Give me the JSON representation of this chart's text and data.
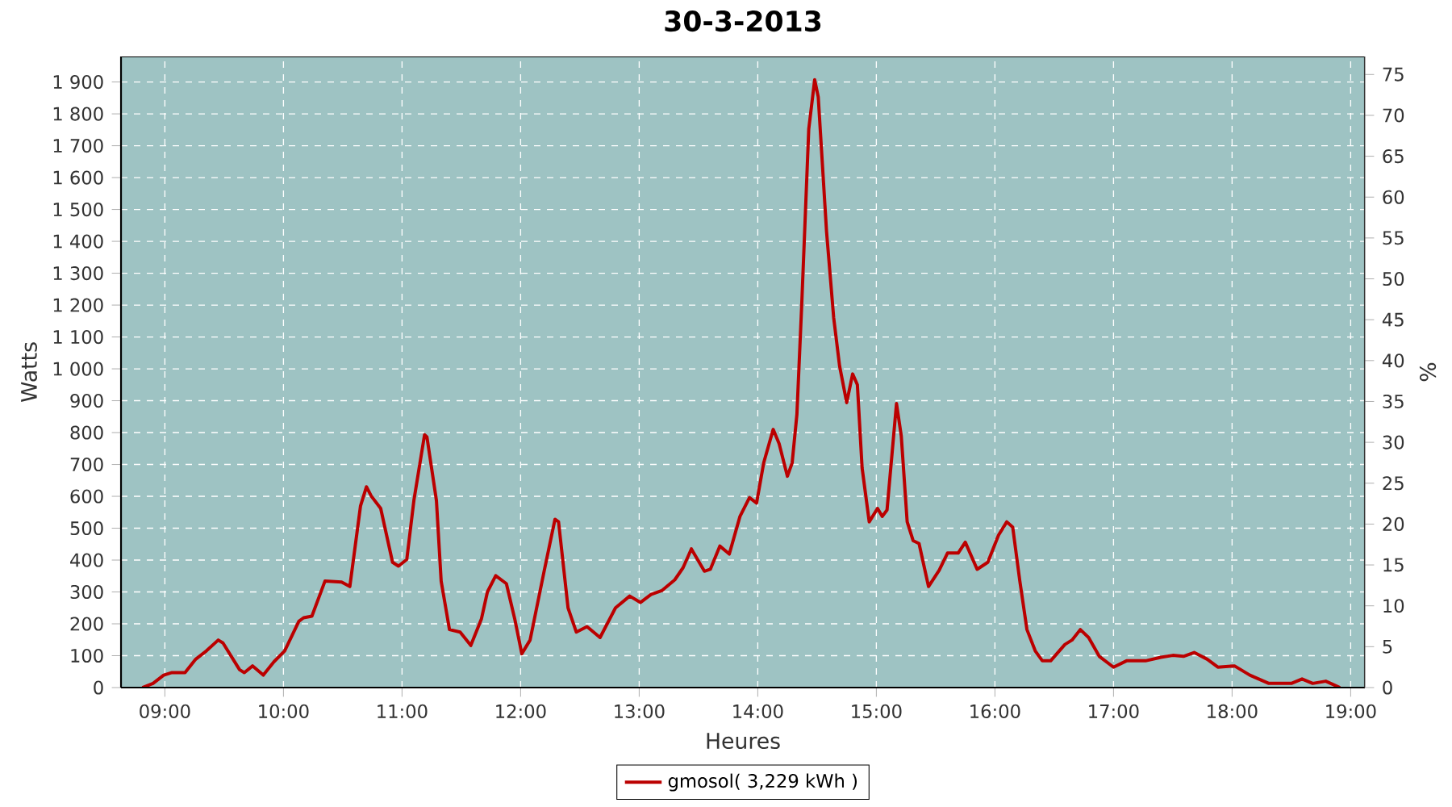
{
  "chart_data": {
    "type": "line",
    "title": "30-3-2013",
    "xlabel": "Heures",
    "ylabel": "Watts",
    "y2label": "%",
    "x": [
      8.81,
      8.9,
      8.99,
      9.06,
      9.17,
      9.26,
      9.35,
      9.45,
      9.49,
      9.63,
      9.67,
      9.74,
      9.83,
      9.92,
      10.01,
      10.13,
      10.17,
      10.24,
      10.35,
      10.49,
      10.56,
      10.65,
      10.7,
      10.74,
      10.82,
      10.92,
      10.97,
      11.04,
      11.1,
      11.19,
      11.21,
      11.29,
      11.33,
      11.4,
      11.49,
      11.58,
      11.67,
      11.72,
      11.79,
      11.88,
      11.95,
      12.01,
      12.08,
      12.2,
      12.29,
      12.32,
      12.4,
      12.47,
      12.56,
      12.67,
      12.8,
      12.92,
      13.01,
      13.1,
      13.19,
      13.3,
      13.37,
      13.44,
      13.55,
      13.6,
      13.68,
      13.76,
      13.85,
      13.93,
      13.99,
      14.05,
      14.13,
      14.18,
      14.25,
      14.29,
      14.33,
      14.37,
      14.43,
      14.48,
      14.51,
      14.58,
      14.64,
      14.69,
      14.75,
      14.8,
      14.84,
      14.88,
      14.94,
      15.01,
      15.05,
      15.09,
      15.17,
      15.21,
      15.26,
      15.31,
      15.36,
      15.44,
      15.53,
      15.6,
      15.69,
      15.75,
      15.85,
      15.94,
      16.03,
      16.1,
      16.15,
      16.21,
      16.27,
      16.34,
      16.4,
      16.47,
      16.59,
      16.65,
      16.72,
      16.79,
      16.88,
      17.0,
      17.11,
      17.27,
      17.4,
      17.5,
      17.59,
      17.68,
      17.79,
      17.88,
      18.02,
      18.15,
      18.31,
      18.5,
      18.59,
      18.68,
      18.79,
      18.91
    ],
    "series": [
      {
        "name": "gmosol( 3,229 kWh )",
        "color": "#bb0000",
        "values": [
          0,
          13,
          39,
          47,
          47,
          89,
          115,
          149,
          140,
          56,
          47,
          68,
          39,
          81,
          115,
          208,
          219,
          224,
          334,
          331,
          317,
          570,
          630,
          601,
          562,
          393,
          381,
          402,
          587,
          793,
          786,
          587,
          334,
          182,
          174,
          132,
          216,
          300,
          351,
          326,
          216,
          106,
          149,
          368,
          528,
          520,
          250,
          174,
          191,
          157,
          250,
          287,
          267,
          292,
          304,
          338,
          376,
          435,
          365,
          371,
          444,
          419,
          537,
          596,
          579,
          705,
          810,
          765,
          663,
          705,
          857,
          1195,
          1752,
          1907,
          1853,
          1431,
          1161,
          1009,
          894,
          984,
          950,
          689,
          520,
          562,
          537,
          557,
          891,
          790,
          520,
          461,
          452,
          317,
          368,
          422,
          422,
          456,
          371,
          393,
          478,
          520,
          503,
          334,
          182,
          115,
          84,
          84,
          135,
          149,
          182,
          157,
          98,
          64,
          84,
          84,
          95,
          101,
          98,
          110,
          89,
          64,
          68,
          39,
          13,
          13,
          27,
          13,
          20,
          0
        ]
      }
    ],
    "xlim": [
      8.63,
      19.12
    ],
    "xticks": [
      {
        "value": 9,
        "label": "09:00"
      },
      {
        "value": 10,
        "label": "10:00"
      },
      {
        "value": 11,
        "label": "11:00"
      },
      {
        "value": 12,
        "label": "12:00"
      },
      {
        "value": 13,
        "label": "13:00"
      },
      {
        "value": 14,
        "label": "14:00"
      },
      {
        "value": 15,
        "label": "15:00"
      },
      {
        "value": 16,
        "label": "16:00"
      },
      {
        "value": 17,
        "label": "17:00"
      },
      {
        "value": 18,
        "label": "18:00"
      },
      {
        "value": 19,
        "label": "19:00"
      }
    ],
    "ylim": [
      0,
      1980
    ],
    "yticks": [
      0,
      100,
      200,
      300,
      400,
      500,
      600,
      700,
      800,
      900,
      {
        "value": 1000,
        "label": "1 000"
      },
      {
        "value": 1100,
        "label": "1 100"
      },
      {
        "value": 1200,
        "label": "1 200"
      },
      {
        "value": 1300,
        "label": "1 300"
      },
      {
        "value": 1400,
        "label": "1 400"
      },
      {
        "value": 1500,
        "label": "1 500"
      },
      {
        "value": 1600,
        "label": "1 600"
      },
      {
        "value": 1700,
        "label": "1 700"
      },
      {
        "value": 1800,
        "label": "1 800"
      },
      {
        "value": 1900,
        "label": "1 900"
      }
    ],
    "y2lim": [
      0,
      77.2
    ],
    "y2ticks": [
      0,
      5,
      10,
      15,
      20,
      25,
      30,
      35,
      40,
      45,
      50,
      55,
      60,
      65,
      70,
      75
    ],
    "grid": true,
    "legend": "bottom",
    "line_style": "solid"
  }
}
